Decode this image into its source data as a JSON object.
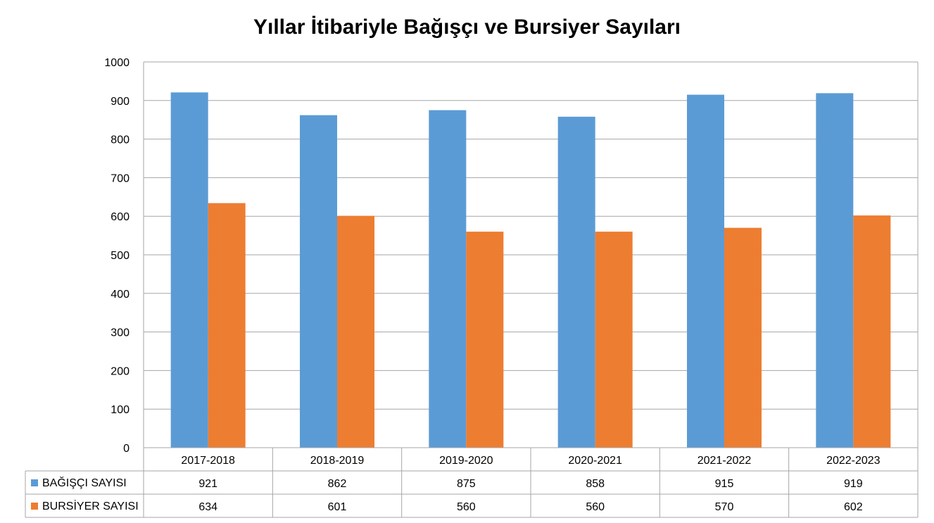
{
  "chart_data": {
    "type": "bar",
    "title": "Yıllar İtibariyle Bağışçı ve Bursiyer Sayıları",
    "categories": [
      "2017-2018",
      "2018-2019",
      "2019-2020",
      "2020-2021",
      "2021-2022",
      "2022-2023"
    ],
    "series": [
      {
        "name": "BAĞIŞÇI SAYISI",
        "color": "#5B9BD5",
        "values": [
          921,
          862,
          875,
          858,
          915,
          919
        ]
      },
      {
        "name": "BURSİYER SAYISI",
        "color": "#ED7D31",
        "values": [
          634,
          601,
          560,
          560,
          570,
          602
        ]
      }
    ],
    "ylim": [
      0,
      1000
    ],
    "yticks": [
      0,
      100,
      200,
      300,
      400,
      500,
      600,
      700,
      800,
      900,
      1000
    ],
    "grid": true,
    "legend": "data-table",
    "gridColor": "#A6A6A6"
  }
}
